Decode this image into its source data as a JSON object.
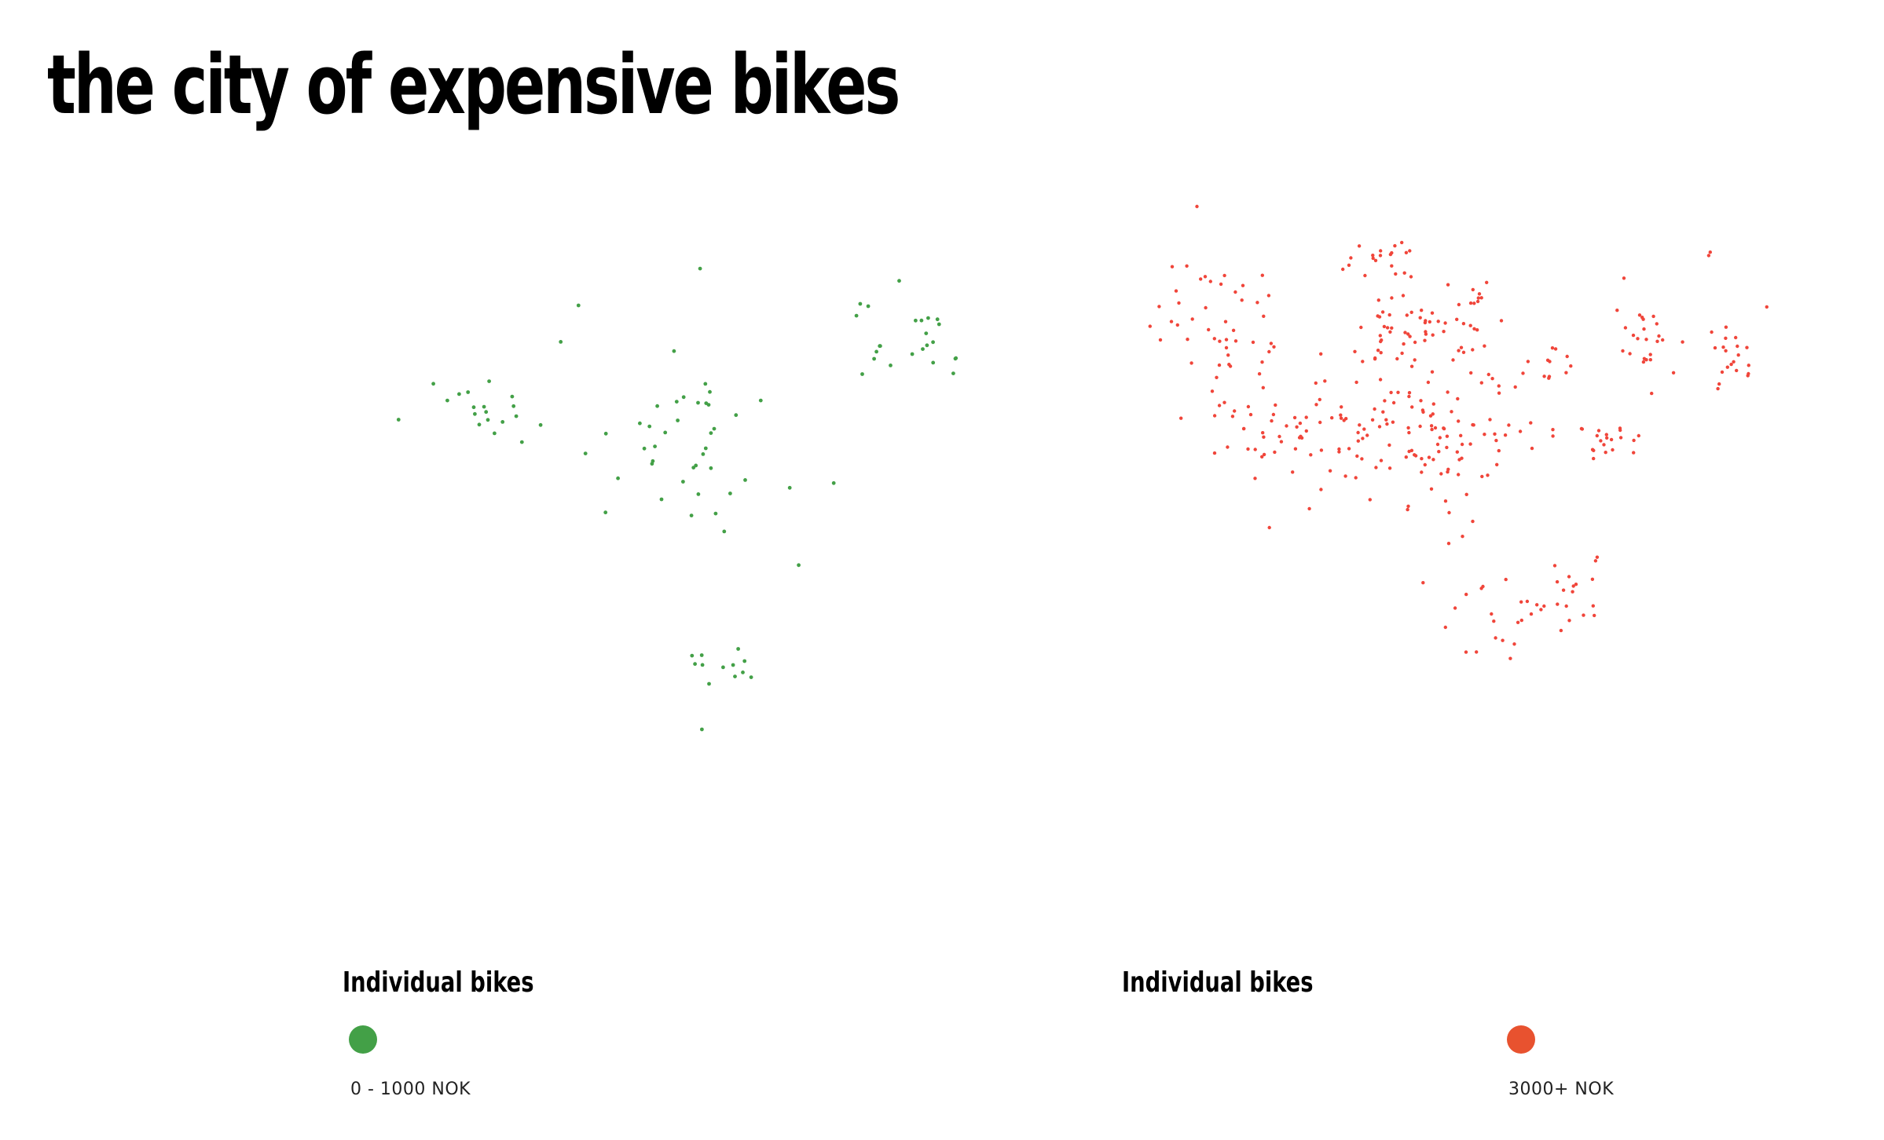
{
  "title": "the city of expensive bikes",
  "colors": {
    "cheap": "#43a047",
    "expensive": "#f0453a",
    "legend_expensive": "#e8522f"
  },
  "legends": {
    "cheap": {
      "title": "Individual bikes",
      "label": "0 - 1000 NOK"
    },
    "expensive": {
      "title": "Individual bikes",
      "label": "3000+ NOK"
    }
  },
  "chart_data": {
    "type": "scatter",
    "title": "the city of expensive bikes",
    "series": [
      {
        "name": "0 - 1000 NOK",
        "color": "#43a047",
        "count": 100
      },
      {
        "name": "3000+ NOK",
        "color": "#f0453a",
        "count": 420
      }
    ]
  }
}
